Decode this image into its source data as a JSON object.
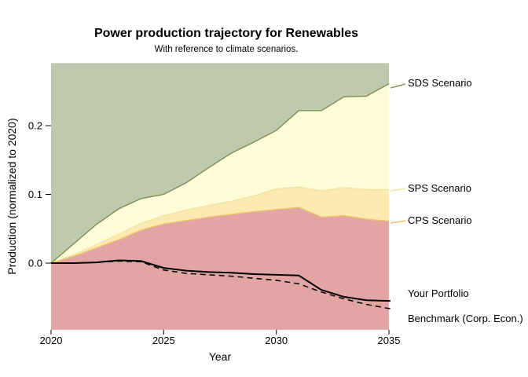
{
  "title": "Power production trajectory for Renewables",
  "subtitle": "With reference to climate scenarios.",
  "chart_data": {
    "type": "area",
    "title": "Power production trajectory for Renewables",
    "subtitle": "With reference to climate scenarios.",
    "xlabel": "Year",
    "ylabel": "Production (normalized to 2020)",
    "grid": false,
    "legend_position": "right-edge annotations",
    "x_range": [
      2020,
      2035
    ],
    "y_range": [
      -0.097,
      0.291
    ],
    "x_ticks": [
      "2020",
      "2025",
      "2030",
      "2035"
    ],
    "y_ticks": [
      "0.0",
      "0.1",
      "0.2"
    ],
    "x": [
      2020,
      2021,
      2022,
      2023,
      2024,
      2025,
      2026,
      2027,
      2028,
      2029,
      2030,
      2031,
      2032,
      2033,
      2034,
      2035
    ],
    "series": [
      {
        "name": "SDS Scenario",
        "kind": "scenario-boundary",
        "color": "#78914f",
        "values": [
          0.0,
          0.028,
          0.056,
          0.079,
          0.094,
          0.1,
          0.117,
          0.139,
          0.16,
          0.176,
          0.193,
          0.222,
          0.222,
          0.242,
          0.243,
          0.261
        ]
      },
      {
        "name": "SPS Scenario",
        "kind": "scenario-boundary",
        "color": "#f0e6a2",
        "values": [
          0.0,
          0.012,
          0.027,
          0.042,
          0.058,
          0.069,
          0.077,
          0.084,
          0.09,
          0.098,
          0.108,
          0.111,
          0.105,
          0.11,
          0.107,
          0.107
        ]
      },
      {
        "name": "CPS Scenario",
        "kind": "scenario-boundary",
        "color": "#eac36d",
        "values": [
          0.0,
          0.01,
          0.022,
          0.034,
          0.048,
          0.057,
          0.062,
          0.067,
          0.071,
          0.075,
          0.078,
          0.081,
          0.067,
          0.069,
          0.064,
          0.061
        ]
      },
      {
        "name": "Your Portfolio",
        "kind": "line-solid",
        "color": "#000000",
        "values": [
          0.0,
          0.0,
          0.001,
          0.004,
          0.003,
          -0.007,
          -0.011,
          -0.013,
          -0.014,
          -0.016,
          -0.017,
          -0.018,
          -0.039,
          -0.049,
          -0.054,
          -0.055
        ]
      },
      {
        "name": "Benchmark (Corp. Econ.)",
        "kind": "line-dashed",
        "color": "#000000",
        "values": [
          0.0,
          0.0,
          0.001,
          0.003,
          0.002,
          -0.01,
          -0.015,
          -0.017,
          -0.019,
          -0.022,
          -0.025,
          -0.03,
          -0.042,
          -0.052,
          -0.06,
          -0.066
        ]
      }
    ],
    "fills": {
      "above_sds": "#bfc9ad",
      "sds_to_sps": "#fffcda",
      "sps_to_cps": "#fdeab1",
      "below_cps": "#e3a4a4"
    }
  }
}
